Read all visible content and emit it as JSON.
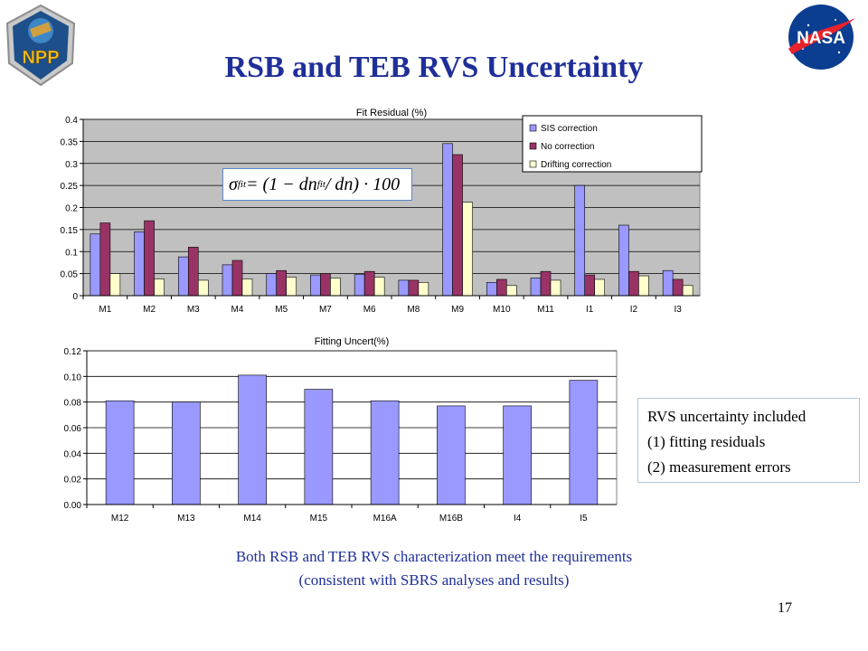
{
  "slide": {
    "title": "RSB and TEB RVS Uncertainty",
    "page_number": "17",
    "npp_logo_text": "NPP",
    "nasa_logo_text": "NASA",
    "formula": {
      "sigma": "σ",
      "sigma_sub": "fit",
      "middle": " = (1 − dn",
      "dn_sub": "fit",
      "tail": " / dn) · 100"
    },
    "note": {
      "line1": "RVS uncertainty included",
      "line2": "(1) fitting residuals",
      "line3": "(2) measurement  errors"
    },
    "caption": {
      "line1": "Both RSB and TEB RVS characterization meet the requirements",
      "line2": "(consistent with SBRS analyses and results)"
    }
  },
  "chart_data": [
    {
      "type": "bar",
      "title": "Fit Residual (%)",
      "xlabel": "",
      "ylabel": "",
      "ylim": [
        0,
        0.4
      ],
      "yticks": [
        "0",
        "0.05",
        "0.1",
        "0.15",
        "0.2",
        "0.25",
        "0.3",
        "0.35",
        "0.4"
      ],
      "ytick_values": [
        0,
        0.05,
        0.1,
        0.15,
        0.2,
        0.25,
        0.3,
        0.35,
        0.4
      ],
      "grid": true,
      "legend_position": "top-right",
      "categories": [
        "M1",
        "M2",
        "M3",
        "M4",
        "M5",
        "M7",
        "M6",
        "M8",
        "M9",
        "M10",
        "M11",
        "I1",
        "I2",
        "I3"
      ],
      "series": [
        {
          "name": "SIS correction",
          "color": "#9999ff",
          "values": [
            0.14,
            0.145,
            0.088,
            0.07,
            0.05,
            0.047,
            0.048,
            0.035,
            0.345,
            0.03,
            0.04,
            0.25,
            0.16,
            0.057
          ]
        },
        {
          "name": "No correction",
          "color": "#993366",
          "values": [
            0.165,
            0.17,
            0.11,
            0.08,
            0.057,
            0.05,
            0.055,
            0.035,
            0.32,
            0.037,
            0.055,
            0.047,
            0.055,
            0.037
          ]
        },
        {
          "name": "Drifting correction",
          "color": "#ffffcc",
          "values": [
            0.05,
            0.038,
            0.035,
            0.038,
            0.042,
            0.04,
            0.042,
            0.03,
            0.212,
            0.023,
            0.035,
            0.037,
            0.045,
            0.023
          ]
        }
      ]
    },
    {
      "type": "bar",
      "title": "Fitting Uncert(%)",
      "xlabel": "",
      "ylabel": "",
      "ylim": [
        0,
        0.12
      ],
      "yticks": [
        "0.00",
        "0.02",
        "0.04",
        "0.06",
        "0.08",
        "0.10",
        "0.12"
      ],
      "ytick_values": [
        0,
        0.02,
        0.04,
        0.06,
        0.08,
        0.1,
        0.12
      ],
      "grid": true,
      "categories": [
        "M12",
        "M13",
        "M14",
        "M15",
        "M16A",
        "M16B",
        "I4",
        "I5"
      ],
      "series": [
        {
          "color": "#9999ff",
          "values": [
            0.081,
            0.08,
            0.101,
            0.09,
            0.081,
            0.077,
            0.077,
            0.097
          ]
        }
      ]
    }
  ]
}
